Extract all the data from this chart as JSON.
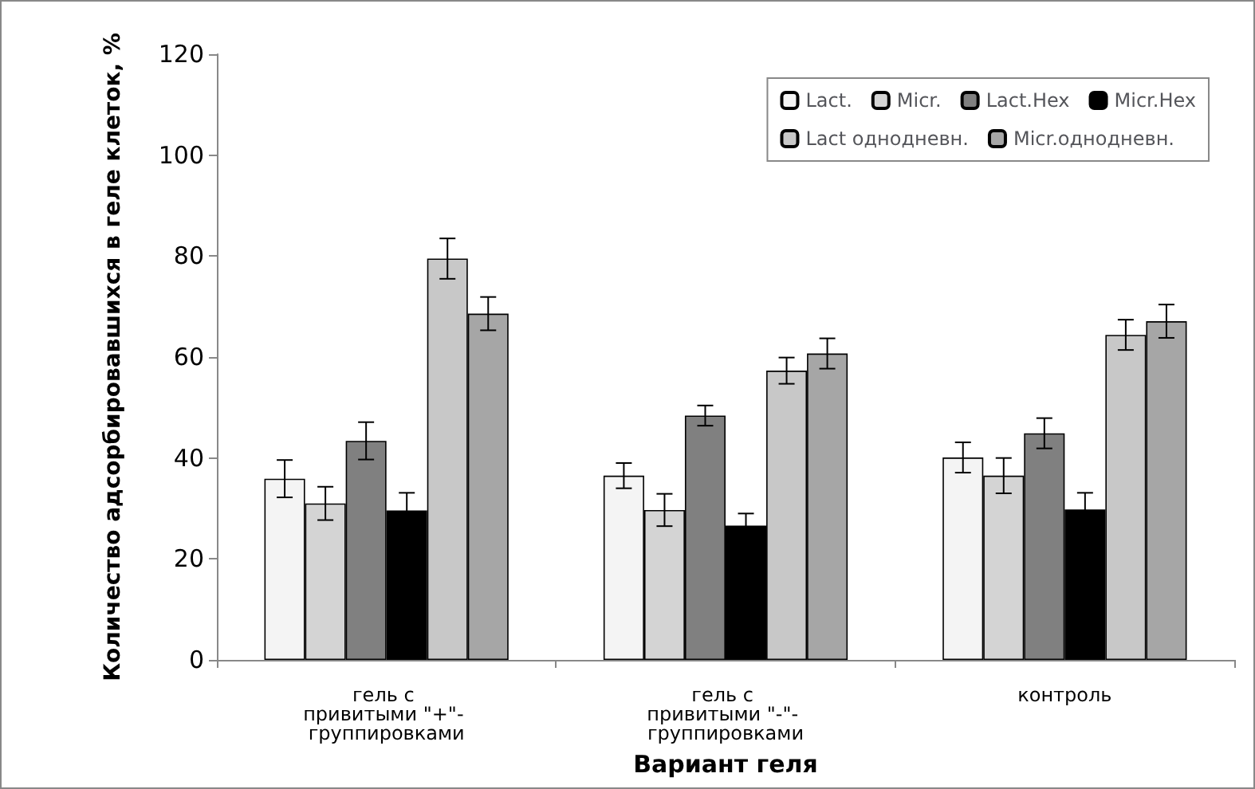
{
  "chart_data": {
    "type": "bar",
    "xlabel": "Вариант геля",
    "ylabel": "Количество адсорбировавшихся в геле клеток, %",
    "categories": [
      "гель с привитыми \"+\"- группировками",
      "гель с привитыми \"-\"- группировками",
      "контроль"
    ],
    "series": [
      {
        "name": "Lact.",
        "color": "#f4f4f4",
        "values": [
          35.9,
          36.5,
          40.1
        ],
        "errors": [
          3.7,
          2.5,
          3
        ]
      },
      {
        "name": "Micr.",
        "color": "#d4d4d4",
        "values": [
          31,
          29.7,
          36.5
        ],
        "errors": [
          3.3,
          3.2,
          3.5
        ]
      },
      {
        "name": "Lact.Hex",
        "color": "#808080",
        "values": [
          43.4,
          48.4,
          44.9
        ],
        "errors": [
          3.7,
          2,
          3
        ]
      },
      {
        "name": "Micr.Hex",
        "color": "#000000",
        "values": [
          29.6,
          26.6,
          29.8
        ],
        "errors": [
          3.5,
          2.4,
          3.3
        ]
      },
      {
        "name": "Lact однодневн.",
        "color": "#c8c8c8",
        "values": [
          79.5,
          57.3,
          64.4
        ],
        "errors": [
          4,
          2.6,
          3
        ]
      },
      {
        "name": "Micr.однодневн.",
        "color": "#a6a6a6",
        "values": [
          68.6,
          60.7,
          67.1
        ],
        "errors": [
          3.3,
          3,
          3.3
        ]
      }
    ],
    "ylim": [
      0,
      120
    ],
    "yticks": [
      0,
      20,
      40,
      60,
      80,
      100,
      120
    ],
    "grid": false,
    "legend": "top right"
  }
}
